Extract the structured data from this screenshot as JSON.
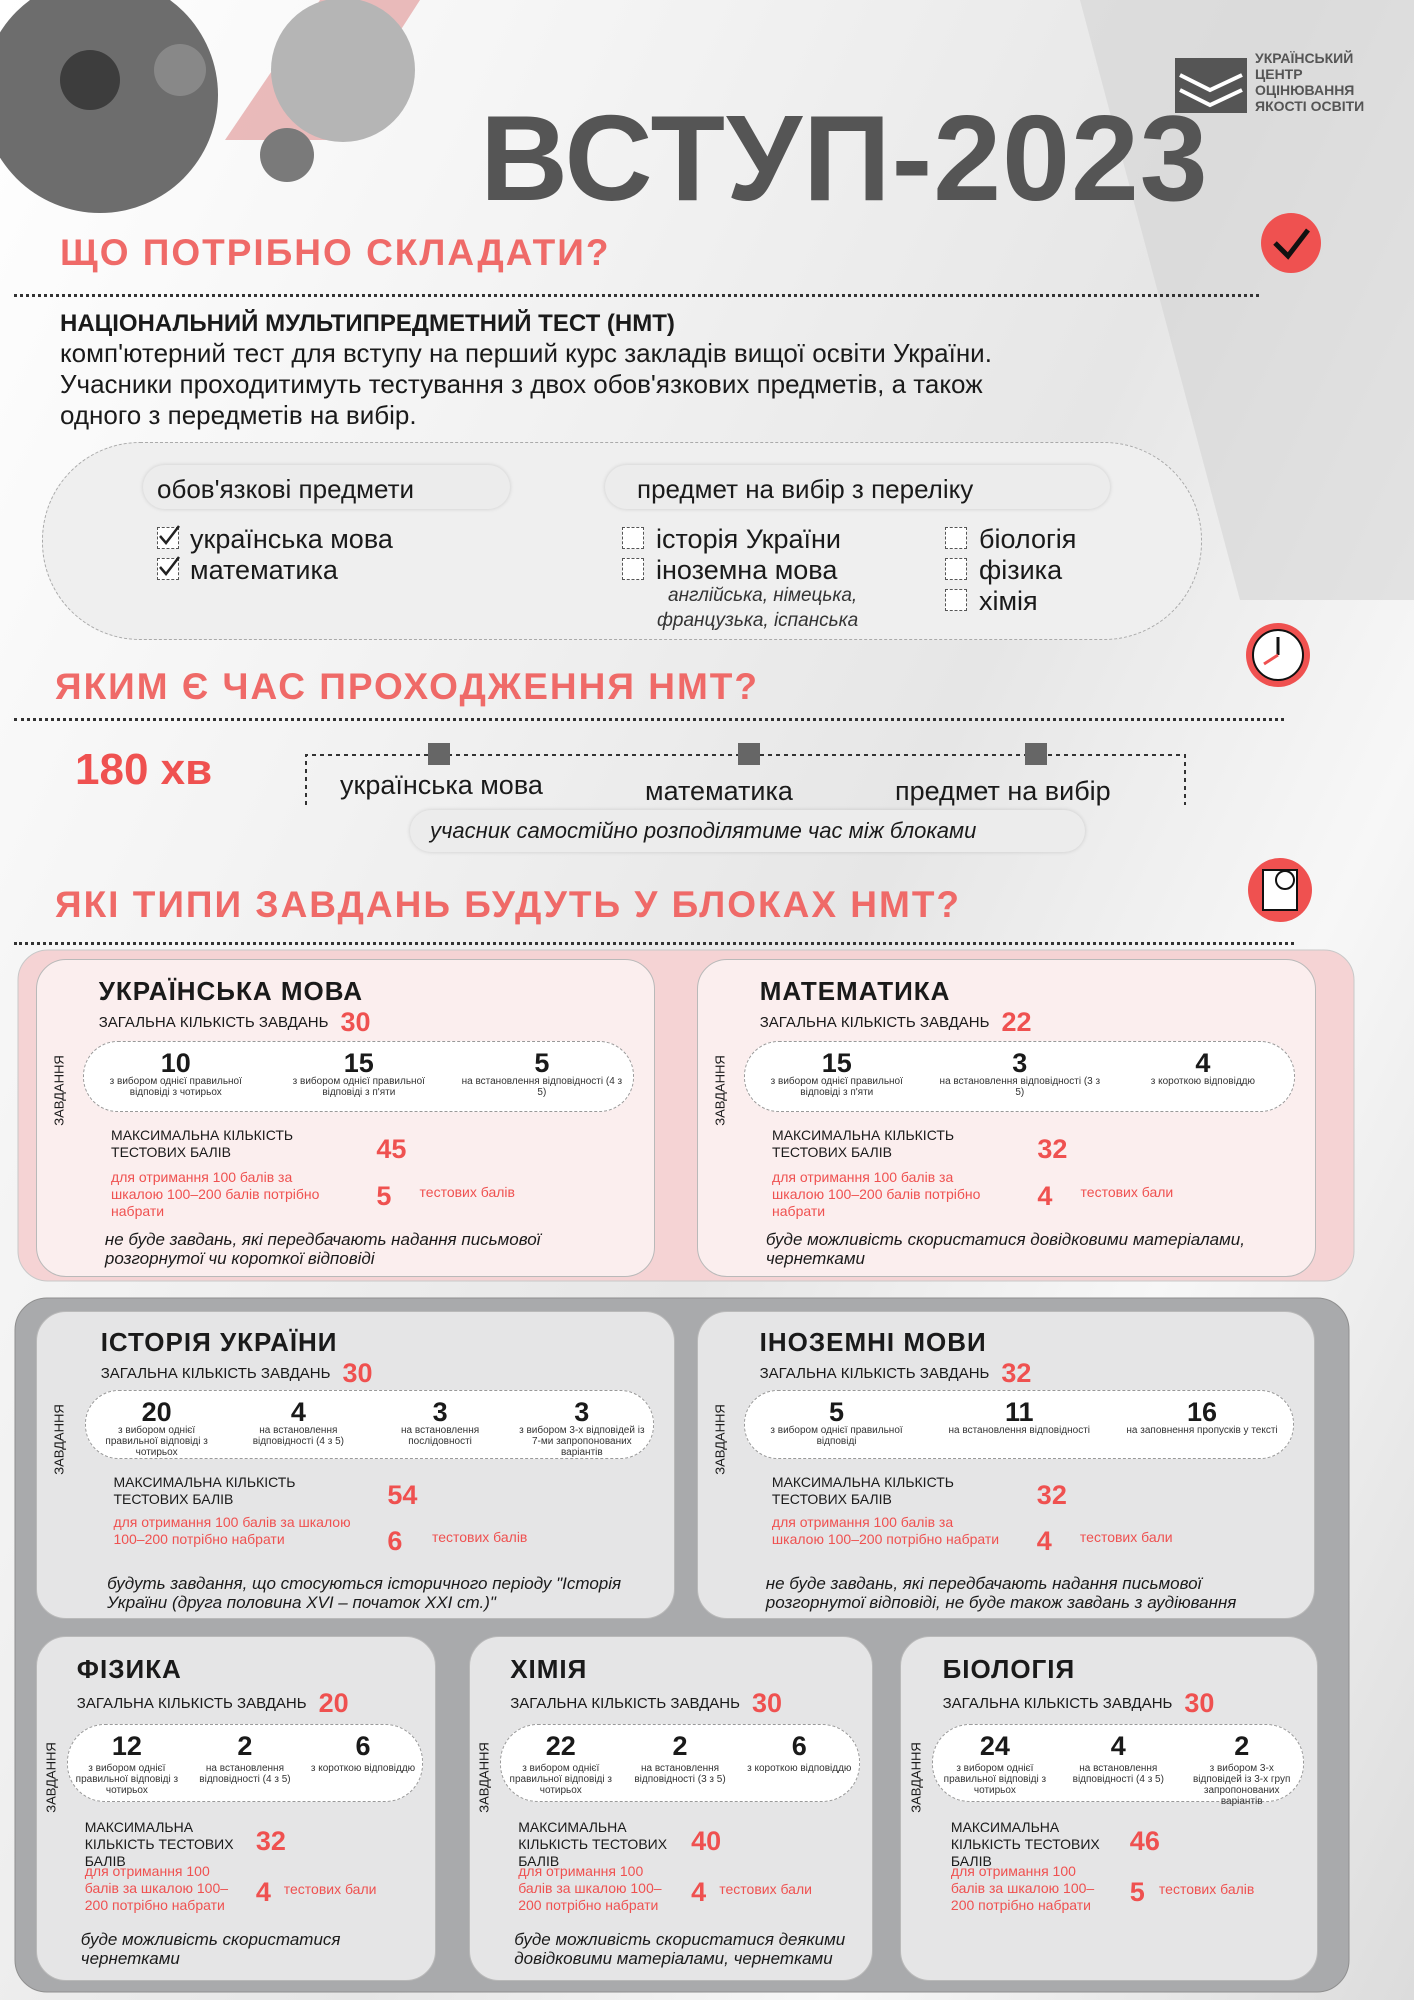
{
  "header": {
    "org": [
      "УКРАЇНСЬКИЙ",
      "ЦЕНТР",
      "ОЦІНЮВАННЯ",
      "ЯКОСТІ ОСВІТИ"
    ],
    "title": "ВСТУП-2023"
  },
  "section1": {
    "heading": "ЩО ПОТРІБНО СКЛАДАТИ?",
    "test_name": "НАЦІОНАЛЬНИЙ МУЛЬТИПРЕДМЕТНИЙ ТЕСТ (НМТ)",
    "description": [
      "комп'ютерний тест для вступу на перший курс закладів вищої освіти України.",
      "Учасники проходитимуть тестування з двох обов'язкових предметів, а також",
      "одного з передметів  на вибір."
    ],
    "mandatory": {
      "label": "обов'язкові предмети",
      "items": [
        "українська мова",
        "математика"
      ]
    },
    "elective": {
      "label": "предмет на вибір з переліку",
      "items": [
        "історія України",
        "іноземна мова",
        "біологія",
        "фізика",
        "хімія"
      ],
      "languages_note": [
        "англійська, німецька,",
        "французька, іспанська"
      ]
    }
  },
  "section2": {
    "heading": "ЯКИМ Є ЧАС ПРОХОДЖЕННЯ НМТ?",
    "duration": "180 хв",
    "blocks": [
      "українська мова",
      "математика",
      "предмет на вибір"
    ],
    "note": "учасник самостійно розподілятиме час між блоками"
  },
  "section3": {
    "heading": "ЯКІ ТИПИ ЗАВДАНЬ БУДУТЬ У БЛОКАХ НМТ?",
    "side_label": "ЗАВДАННЯ",
    "total_label": "ЗАГАЛЬНА КІЛЬКІСТЬ ЗАВДАНЬ",
    "max_label": "МАКСИМАЛЬНА КІЛЬКІСТЬ ТЕСТОВИХ БАЛІВ",
    "subjects": [
      {
        "name": "УКРАЇНСЬКА МОВА",
        "total": 30,
        "tasks": [
          {
            "count": 10,
            "desc": "з вибором однієї правильної відповіді з чотирьох"
          },
          {
            "count": 15,
            "desc": "з вибором однієї правильної відповіді з п'яти"
          },
          {
            "count": 5,
            "desc": "на встановлення відповідності (4 з 5)"
          }
        ],
        "max": 45,
        "threshold_note": "для отримання 100 балів за шкалою 100–200 балів потрібно набрати",
        "threshold": 5,
        "threshold_unit": "тестових балів",
        "remark": "не буде завдань, які передбачають надання письмової розгорнутої чи короткої відповіді"
      },
      {
        "name": "МАТЕМАТИКА",
        "total": 22,
        "tasks": [
          {
            "count": 15,
            "desc": "з вибором однієї правильної відповіді з п'яти"
          },
          {
            "count": 3,
            "desc": "на встановлення відповідності (3 з 5)"
          },
          {
            "count": 4,
            "desc": "з короткою відповіддю"
          }
        ],
        "max": 32,
        "threshold_note": "для отримання 100 балів за шкалою 100–200 балів потрібно набрати",
        "threshold": 4,
        "threshold_unit": "тестових бали",
        "remark": "буде можливість скористатися довідковими матеріалами, чернетками"
      },
      {
        "name": "ІСТОРІЯ УКРАЇНИ",
        "total": 30,
        "tasks": [
          {
            "count": 20,
            "desc": "з вибором однієї правильної відповіді з чотирьох"
          },
          {
            "count": 4,
            "desc": "на встановлення відповідності (4 з 5)"
          },
          {
            "count": 3,
            "desc": "на встановлення послідовності"
          },
          {
            "count": 3,
            "desc": "з вибором 3-х відповідей із 7-ми запропонованих варіантів"
          }
        ],
        "max": 54,
        "threshold_note": "для отримання 100 балів за шкалою 100–200 потрібно набрати",
        "threshold": 6,
        "threshold_unit": "тестових балів",
        "remark": "будуть завдання, що стосуються історичного періоду \"Історія України (друга половина XVI – початок XXI ст.)\""
      },
      {
        "name": "ІНОЗЕМНІ МОВИ",
        "total": 32,
        "tasks": [
          {
            "count": 5,
            "desc": "з вибором однієї правильної відповіді"
          },
          {
            "count": 11,
            "desc": "на встановлення відповідності"
          },
          {
            "count": 16,
            "desc": "на заповнення пропусків у тексті"
          }
        ],
        "max": 32,
        "threshold_note": "для отримання 100 балів за шкалою 100–200 потрібно набрати",
        "threshold": 4,
        "threshold_unit": "тестових бали",
        "remark": "не буде завдань, які передбачають надання письмової розгорнутої відповіді,  не буде також завдань з аудіювання"
      },
      {
        "name": "ФІЗИКА",
        "total": 20,
        "tasks": [
          {
            "count": 12,
            "desc": "з вибором однієї правильної відповіді з чотирьох"
          },
          {
            "count": 2,
            "desc": "на встановлення відповідності (4 з 5)"
          },
          {
            "count": 6,
            "desc": "з короткою відповіддю"
          }
        ],
        "max": 32,
        "threshold_note": "для отримання 100 балів за шкалою 100–200 потрібно набрати",
        "threshold": 4,
        "threshold_unit": "тестових бали",
        "remark": "буде можливість скористатися чернетками"
      },
      {
        "name": "ХІМІЯ",
        "total": 30,
        "tasks": [
          {
            "count": 22,
            "desc": "з вибором однієї правильної відповіді з чотирьох"
          },
          {
            "count": 2,
            "desc": "на встановлення відповідності (3 з 5)"
          },
          {
            "count": 6,
            "desc": "з короткою відповіддю"
          }
        ],
        "max": 40,
        "threshold_note": "для отримання 100 балів за шкалою 100–200 потрібно набрати",
        "threshold": 4,
        "threshold_unit": "тестових бали",
        "remark": "буде можливість скористатися деякими довідковими матеріалами, чернетками"
      },
      {
        "name": "БІОЛОГІЯ",
        "total": 30,
        "tasks": [
          {
            "count": 24,
            "desc": "з вибором однієї правильної відповіді з чотирьох"
          },
          {
            "count": 4,
            "desc": "на встановлення відповідності (4 з 5)"
          },
          {
            "count": 2,
            "desc": "з вибором 3-х відповідей із 3-х груп запропонованих варіантів"
          }
        ],
        "max": 46,
        "threshold_note": "для отримання 100 балів за шкалою 100–200 потрібно набрати",
        "threshold": 5,
        "threshold_unit": "тестових балів"
      }
    ]
  }
}
